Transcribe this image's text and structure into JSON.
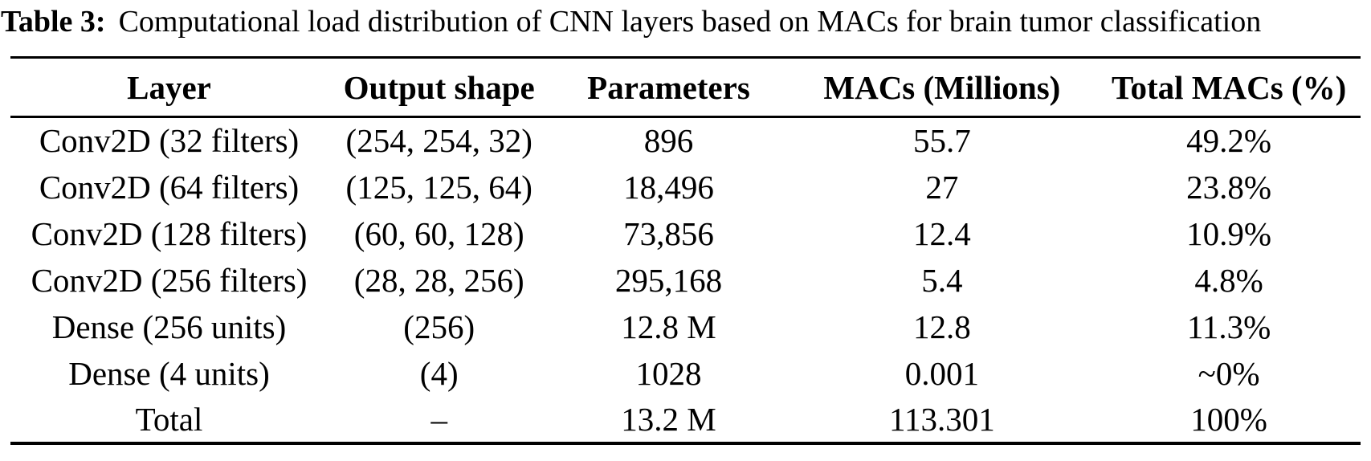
{
  "caption": {
    "label": "Table 3:",
    "text": "Computational load distribution of CNN layers based on MACs for brain tumor classification"
  },
  "table": {
    "columns": [
      "Layer",
      "Output shape",
      "Parameters",
      "MACs (Millions)",
      "Total MACs (%)"
    ],
    "rows": [
      [
        "Conv2D (32 filters)",
        "(254, 254, 32)",
        "896",
        "55.7",
        "49.2%"
      ],
      [
        "Conv2D (64 filters)",
        "(125, 125, 64)",
        "18,496",
        "27",
        "23.8%"
      ],
      [
        "Conv2D (128 filters)",
        "(60, 60, 128)",
        "73,856",
        "12.4",
        "10.9%"
      ],
      [
        "Conv2D (256 filters)",
        "(28, 28, 256)",
        "295,168",
        "5.4",
        "4.8%"
      ],
      [
        "Dense (256 units)",
        "(256)",
        "12.8 M",
        "12.8",
        "11.3%"
      ],
      [
        "Dense (4 units)",
        "(4)",
        "1028",
        "0.001",
        "~0%"
      ],
      [
        "Total",
        "–",
        "13.2 M",
        "113.301",
        "100%"
      ]
    ]
  }
}
